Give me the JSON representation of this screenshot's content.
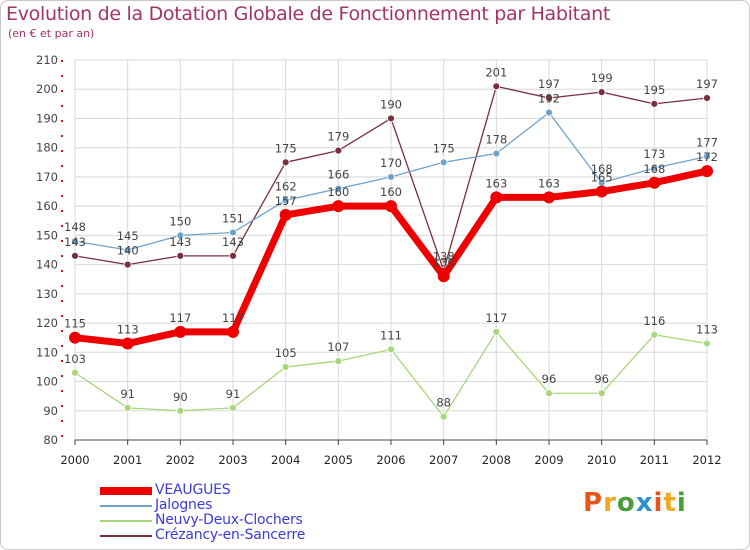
{
  "header": {
    "title": "Evolution de la Dotation Globale de Fonctionnement par Habitant",
    "subtitle": "(en € et par an)"
  },
  "chart_data": {
    "type": "line",
    "title": "Evolution de la Dotation Globale de Fonctionnement par Habitant",
    "subtitle": "(en € et par an)",
    "xlabel": "",
    "ylabel": "",
    "categories": [
      "2000",
      "2001",
      "2002",
      "2003",
      "2004",
      "2005",
      "2006",
      "2007",
      "2008",
      "2009",
      "2010",
      "2011",
      "2012"
    ],
    "yticks": [
      80,
      90,
      100,
      110,
      120,
      130,
      140,
      150,
      160,
      170,
      180,
      190,
      200,
      210
    ],
    "ylim": [
      80,
      210
    ],
    "grid": true,
    "legend_position": "bottom-left",
    "series": [
      {
        "name": "VEAUGUES",
        "color": "#ee0000",
        "values": [
          115,
          113,
          117,
          117,
          157,
          160,
          160,
          136,
          163,
          163,
          165,
          168,
          172
        ]
      },
      {
        "name": "Jalognes",
        "color": "#6fa3cc",
        "values": [
          148,
          145,
          150,
          151,
          162,
          166,
          170,
          175,
          178,
          192,
          168,
          173,
          177
        ]
      },
      {
        "name": "Neuvy-Deux-Clochers",
        "color": "#a8d67a",
        "values": [
          103,
          91,
          90,
          91,
          105,
          107,
          111,
          88,
          117,
          96,
          96,
          116,
          113
        ]
      },
      {
        "name": "Crézancy-en-Sancerre",
        "color": "#7a2f3a",
        "values": [
          143,
          140,
          143,
          143,
          175,
          179,
          190,
          138,
          201,
          197,
          199,
          195,
          197
        ]
      }
    ]
  },
  "logo": {
    "letters": [
      "P",
      "r",
      "o",
      "x",
      "i",
      "t",
      "i"
    ]
  }
}
